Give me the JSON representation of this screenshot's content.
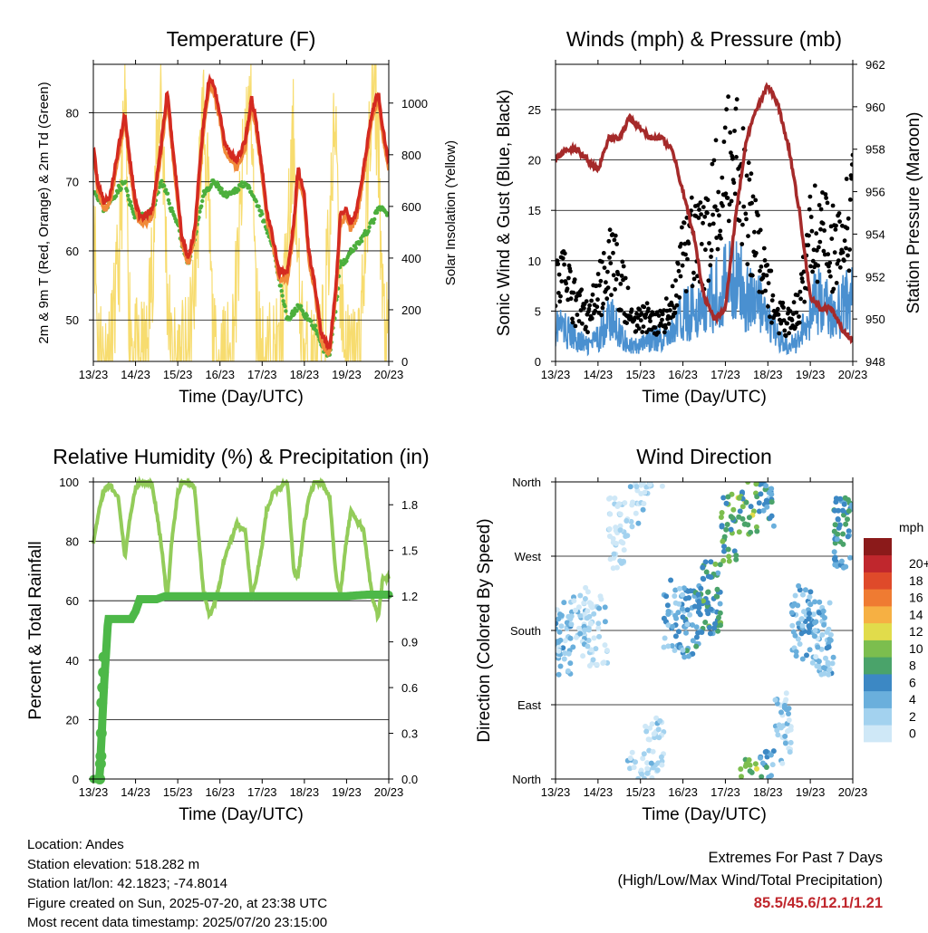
{
  "colors": {
    "temp_2m": "#d42a20",
    "temp_9m": "#f08a3a",
    "dewpoint": "#4caf3c",
    "solar": "#f7dc6f",
    "wind": "#4a90d0",
    "gust": "#000000",
    "pressure": "#a52a2a",
    "rh": "#93cc5a",
    "rain": "#4db848",
    "extremes": "#c0272d"
  },
  "time_ticks": [
    "13/23",
    "14/23",
    "15/23",
    "16/23",
    "17/23",
    "18/23",
    "19/23",
    "20/23"
  ],
  "panels": {
    "temperature": {
      "title": "Temperature (F)",
      "xlabel": "Time (Day/UTC)",
      "ylabel_left": "2m & 9m T (Red, Orange) & 2m Td (Green)",
      "ylabel_right": "Solar Insolation (Yellow)"
    },
    "winds": {
      "title": "Winds (mph) & Pressure (mb)",
      "xlabel": "Time (Day/UTC)",
      "ylabel_left": "Sonic Wind & Gust (Blue, Black)",
      "ylabel_right": "Station Pressure (Maroon)"
    },
    "humidity": {
      "title": "Relative Humidity (%) & Precipitation (in)",
      "xlabel": "Time (Day/UTC)",
      "ylabel_left": "Percent & Total Rainfall"
    },
    "direction": {
      "title": "Wind Direction",
      "xlabel": "Time (Day/UTC)",
      "ylabel_left": "Direction (Colored By Speed)",
      "legend_unit": "mph"
    }
  },
  "chart_data": [
    {
      "type": "line",
      "title": "Temperature (F)",
      "xlabel": "Time (Day/UTC)",
      "ylabel": "2m & 9m T (Red, Orange) & 2m Td (Green)",
      "ylabel_right": "Solar Insolation (Yellow)",
      "x_ticks": [
        "13/23",
        "14/23",
        "15/23",
        "16/23",
        "17/23",
        "18/23",
        "19/23",
        "20/23"
      ],
      "ylim": [
        44,
        87
      ],
      "yticks": [
        50,
        60,
        70,
        80
      ],
      "ylim_right": [
        0,
        1150
      ],
      "yticks_right": [
        0,
        200,
        400,
        600,
        800,
        1000
      ],
      "x_days": [
        0,
        0.1,
        0.25,
        0.4,
        0.6,
        0.75,
        0.85,
        1,
        1.1,
        1.25,
        1.4,
        1.6,
        1.75,
        1.85,
        2,
        2.1,
        2.25,
        2.4,
        2.6,
        2.75,
        2.85,
        3,
        3.1,
        3.25,
        3.4,
        3.6,
        3.75,
        3.85,
        4,
        4.1,
        4.25,
        4.4,
        4.6,
        4.75,
        4.85,
        5,
        5.1,
        5.25,
        5.4,
        5.6,
        5.75,
        5.85,
        6,
        6.1,
        6.25,
        6.4,
        6.6,
        6.75,
        6.85,
        7
      ],
      "series": [
        {
          "name": "2m T",
          "color": "#d42a20",
          "values": [
            75,
            70,
            67,
            68,
            75,
            80,
            74,
            67,
            65,
            65,
            66,
            75,
            83,
            77,
            68,
            62,
            59,
            63,
            78,
            85,
            84,
            80,
            76,
            74,
            73,
            76,
            82,
            79,
            72,
            66,
            62,
            57,
            57,
            64,
            72,
            68,
            60,
            55,
            48,
            46,
            55,
            65,
            66,
            64,
            66,
            72,
            80,
            83,
            78,
            73
          ]
        },
        {
          "name": "9m T",
          "color": "#f08a3a",
          "values": [
            75,
            69,
            66,
            67,
            74,
            79,
            73,
            66,
            64,
            64,
            65,
            74,
            82,
            76,
            67,
            61,
            58,
            62,
            77,
            84,
            83,
            79,
            75,
            73,
            72,
            75,
            81,
            78,
            71,
            65,
            61,
            56,
            56,
            63,
            71,
            67,
            59,
            54,
            47,
            45,
            54,
            64,
            65,
            63,
            65,
            71,
            79,
            82,
            77,
            72
          ]
        },
        {
          "name": "2m Td",
          "color": "#4caf3c",
          "values": [
            69,
            68,
            66,
            67,
            69,
            70,
            67,
            65,
            65,
            65,
            66,
            70,
            68,
            66,
            64,
            61,
            58,
            62,
            68,
            69,
            70,
            69,
            68,
            68,
            69,
            70,
            68,
            67,
            65,
            63,
            61,
            56,
            50,
            51,
            52,
            51,
            50,
            49,
            46,
            45,
            52,
            58,
            59,
            60,
            61,
            62,
            64,
            66,
            66,
            65
          ]
        },
        {
          "name": "Solar Insolation",
          "color": "#f7dc6f",
          "axis": "right",
          "values": [
            700,
            100,
            0,
            0,
            350,
            1000,
            200,
            0,
            0,
            0,
            400,
            1100,
            300,
            0,
            0,
            0,
            0,
            300,
            1000,
            500,
            0,
            0,
            0,
            0,
            300,
            900,
            1000,
            200,
            0,
            0,
            0,
            0,
            400,
            900,
            300,
            0,
            0,
            0,
            0,
            500,
            1000,
            300,
            0,
            0,
            0,
            300,
            1050,
            900,
            200,
            0
          ]
        }
      ]
    },
    {
      "type": "line",
      "title": "Winds (mph) & Pressure (mb)",
      "xlabel": "Time (Day/UTC)",
      "ylabel": "Sonic Wind & Gust (Blue, Black)",
      "ylabel_right": "Station Pressure (Maroon)",
      "x_ticks": [
        "13/23",
        "14/23",
        "15/23",
        "16/23",
        "17/23",
        "18/23",
        "19/23",
        "20/23"
      ],
      "ylim": [
        0,
        29.5
      ],
      "yticks": [
        0,
        5,
        10,
        15,
        20,
        25
      ],
      "ylim_right": [
        948,
        962
      ],
      "yticks_right": [
        948,
        950,
        952,
        954,
        956,
        958,
        960,
        962
      ],
      "x_days": [
        0,
        0.25,
        0.5,
        0.75,
        1,
        1.25,
        1.5,
        1.75,
        2,
        2.25,
        2.5,
        2.75,
        3,
        3.25,
        3.5,
        3.75,
        4,
        4.25,
        4.5,
        4.75,
        5,
        5.25,
        5.5,
        5.75,
        6,
        6.25,
        6.5,
        6.75,
        7
      ],
      "series": [
        {
          "name": "Wind",
          "color": "#4a90d0",
          "values": [
            5,
            4,
            3,
            2,
            3,
            6,
            4,
            2,
            2,
            3,
            3,
            4,
            6,
            7,
            6,
            9,
            10,
            11,
            9,
            8,
            5,
            3,
            2,
            3,
            7,
            8,
            6,
            7,
            9
          ]
        },
        {
          "name": "Gust",
          "color": "#000000",
          "values": [
            10,
            8,
            6,
            5,
            7,
            11,
            9,
            5,
            4,
            5,
            4,
            6,
            11,
            13,
            12,
            17,
            20,
            21,
            17,
            13,
            8,
            5,
            4,
            6,
            13,
            14,
            12,
            13,
            16
          ]
        },
        {
          "name": "Pressure",
          "color": "#a52a2a",
          "axis": "right",
          "values": [
            957.5,
            958,
            958,
            957.5,
            957,
            958.5,
            958.5,
            959.5,
            959,
            958.5,
            958.5,
            958,
            956,
            954,
            951,
            950,
            950.5,
            955,
            958.5,
            960,
            961,
            960,
            958,
            955,
            951,
            950.5,
            950.5,
            949.5,
            949
          ]
        }
      ]
    },
    {
      "type": "line",
      "title": "Relative Humidity (%) & Precipitation (in)",
      "xlabel": "Time (Day/UTC)",
      "ylabel": "Percent & Total Rainfall",
      "x_ticks": [
        "13/23",
        "14/23",
        "15/23",
        "16/23",
        "17/23",
        "18/23",
        "19/23",
        "20/23"
      ],
      "ylim": [
        0,
        100
      ],
      "yticks": [
        0,
        20,
        40,
        60,
        80,
        100
      ],
      "ylim_right": [
        0,
        1.95
      ],
      "yticks_right": [
        0.0,
        0.3,
        0.6,
        0.9,
        1.2,
        1.5,
        1.8
      ],
      "x_days": [
        0,
        0.1,
        0.25,
        0.4,
        0.6,
        0.75,
        0.85,
        1,
        1.1,
        1.25,
        1.4,
        1.6,
        1.75,
        1.85,
        2,
        2.1,
        2.25,
        2.4,
        2.6,
        2.75,
        2.85,
        3,
        3.1,
        3.25,
        3.4,
        3.6,
        3.75,
        3.85,
        4,
        4.1,
        4.25,
        4.4,
        4.6,
        4.75,
        4.85,
        5,
        5.1,
        5.25,
        5.4,
        5.6,
        5.75,
        5.85,
        6,
        6.1,
        6.25,
        6.4,
        6.6,
        6.75,
        6.85,
        7
      ],
      "series": [
        {
          "name": "Relative Humidity",
          "color": "#93cc5a",
          "values": [
            80,
            88,
            97,
            99,
            94,
            75,
            86,
            98,
            100,
            100,
            99,
            80,
            60,
            79,
            96,
            100,
            100,
            98,
            64,
            55,
            58,
            66,
            74,
            80,
            86,
            83,
            62,
            66,
            79,
            90,
            96,
            98,
            100,
            70,
            68,
            86,
            94,
            100,
            100,
            95,
            68,
            62,
            81,
            90,
            87,
            84,
            62,
            54,
            67,
            68
          ]
        },
        {
          "name": "Total Precipitation",
          "color": "#4db848",
          "axis": "right",
          "x_days": [
            0,
            0.15,
            0.17,
            0.2,
            0.25,
            0.35,
            0.6,
            0.9,
            1.0,
            1.1,
            1.5,
            1.7,
            2.0,
            3.0,
            4.0,
            5.0,
            6.0,
            6.5,
            7.0
          ],
          "values": [
            0,
            0.0,
            0.15,
            0.3,
            0.6,
            1.05,
            1.05,
            1.05,
            1.1,
            1.18,
            1.18,
            1.2,
            1.2,
            1.2,
            1.2,
            1.2,
            1.2,
            1.21,
            1.21
          ]
        }
      ]
    },
    {
      "type": "scatter",
      "title": "Wind Direction",
      "xlabel": "Time (Day/UTC)",
      "ylabel": "Direction (Colored By Speed)",
      "x_ticks": [
        "13/23",
        "14/23",
        "15/23",
        "16/23",
        "17/23",
        "18/23",
        "19/23",
        "20/23"
      ],
      "yticks": [
        "North",
        "East",
        "South",
        "West",
        "North"
      ],
      "ylim_degrees": [
        0,
        360
      ],
      "colorbar": {
        "unit": "mph",
        "labels": [
          "0",
          "2",
          "4",
          "6",
          "8",
          "10",
          "12",
          "14",
          "16",
          "18",
          "20+"
        ],
        "colors": [
          "#cfe8f7",
          "#a3d2ef",
          "#6aafdc",
          "#3c88c4",
          "#4aa36a",
          "#7cbe4e",
          "#e1dc4b",
          "#f6b043",
          "#ef7b32",
          "#df4a2a",
          "#c0272d",
          "#8b1a1a"
        ]
      },
      "points_summary": [
        {
          "x_day": 0.2,
          "dir_deg": 170,
          "speed": 4
        },
        {
          "x_day": 0.6,
          "dir_deg": 190,
          "speed": 3
        },
        {
          "x_day": 1.0,
          "dir_deg": 180,
          "speed": 2
        },
        {
          "x_day": 1.5,
          "dir_deg": 300,
          "speed": 1
        },
        {
          "x_day": 1.9,
          "dir_deg": 350,
          "speed": 2
        },
        {
          "x_day": 2.3,
          "dir_deg": 30,
          "speed": 2
        },
        {
          "x_day": 2.8,
          "dir_deg": 200,
          "speed": 5
        },
        {
          "x_day": 3.2,
          "dir_deg": 190,
          "speed": 6
        },
        {
          "x_day": 3.7,
          "dir_deg": 220,
          "speed": 8
        },
        {
          "x_day": 4.1,
          "dir_deg": 300,
          "speed": 9
        },
        {
          "x_day": 4.5,
          "dir_deg": 340,
          "speed": 10
        },
        {
          "x_day": 5.0,
          "dir_deg": 350,
          "speed": 6
        },
        {
          "x_day": 5.3,
          "dir_deg": 60,
          "speed": 3
        },
        {
          "x_day": 5.8,
          "dir_deg": 190,
          "speed": 5
        },
        {
          "x_day": 6.3,
          "dir_deg": 170,
          "speed": 4
        },
        {
          "x_day": 6.8,
          "dir_deg": 300,
          "speed": 7
        }
      ]
    }
  ],
  "footer": {
    "location": "Location: Andes",
    "elevation": "Station elevation: 518.282 m",
    "latlon": "Station lat/lon: 42.1823; -74.8014",
    "created": "Figure created on Sun, 2025-07-20, at 23:38 UTC",
    "recent": "Most recent data timestamp: 2025/07/20 23:15:00"
  },
  "extremes": {
    "line1": "Extremes For Past 7 Days",
    "line2": "(High/Low/Max Wind/Total Precipitation)",
    "values": "85.5/45.6/12.1/1.21"
  }
}
